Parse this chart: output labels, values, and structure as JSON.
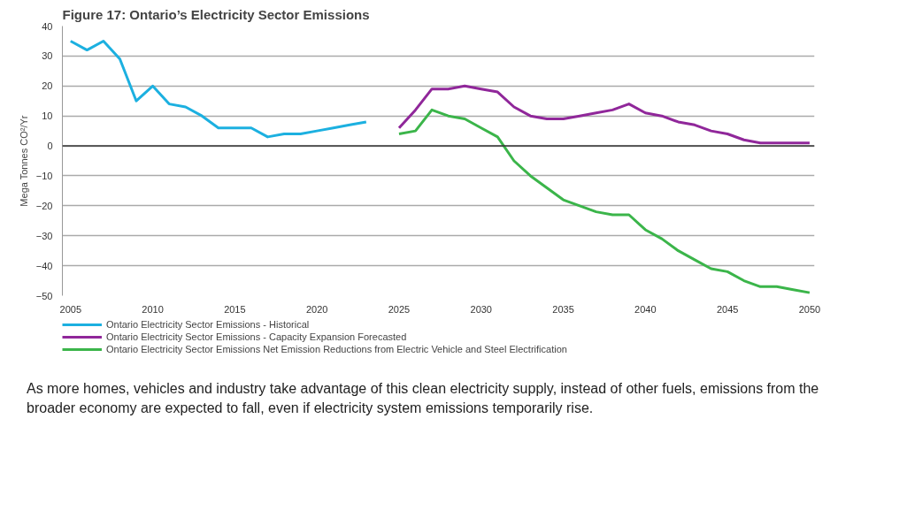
{
  "chart_data": {
    "type": "line",
    "title": "Figure 17: Ontario’s Electricity Sector Emissions",
    "ylabel": "Mega Tonnes CO²/Yr",
    "xlim": [
      2004.5,
      2050.3
    ],
    "xticks": [
      2005,
      2010,
      2015,
      2020,
      2025,
      2030,
      2035,
      2040,
      2045,
      2050
    ],
    "ylim": [
      -50,
      40
    ],
    "yticks": [
      -50,
      -40,
      -30,
      -20,
      -10,
      0,
      10,
      20,
      30,
      40
    ],
    "grid": "y",
    "legend": "bottom",
    "marker": "none",
    "line_style": "solid",
    "ref_lines": [
      {
        "axis": "y",
        "value": 0,
        "color": "#333333"
      }
    ],
    "series": [
      {
        "name": "Ontario Electricity Sector Emissions - Historical",
        "color": "#1cb0e0",
        "x": [
          2005,
          2006,
          2007,
          2008,
          2009,
          2010,
          2011,
          2012,
          2013,
          2014,
          2015,
          2016,
          2017,
          2018,
          2019,
          2020,
          2021,
          2022,
          2023
        ],
        "values": [
          35,
          32,
          35,
          29,
          15,
          20,
          14,
          13,
          10,
          6,
          6,
          6,
          3,
          4,
          4,
          5,
          6,
          7,
          8
        ]
      },
      {
        "name": "Ontario Electricity Sector Emissions - Capacity Expansion Forecasted",
        "color": "#90279a",
        "x": [
          2025,
          2026,
          2027,
          2028,
          2029,
          2030,
          2031,
          2032,
          2033,
          2034,
          2035,
          2036,
          2037,
          2038,
          2039,
          2040,
          2041,
          2042,
          2043,
          2044,
          2045,
          2046,
          2047,
          2048,
          2049,
          2050
        ],
        "values": [
          6,
          12,
          19,
          19,
          20,
          19,
          18,
          13,
          10,
          9,
          9,
          10,
          11,
          12,
          14,
          11,
          10,
          8,
          7,
          5,
          4,
          2,
          1,
          1,
          1,
          1
        ]
      },
      {
        "name": "Ontario Electricity Sector Emissions Net Emission Reductions from Electric Vehicle and Steel Electrification",
        "color": "#3bb54a",
        "x": [
          2025,
          2026,
          2027,
          2028,
          2029,
          2030,
          2031,
          2032,
          2033,
          2034,
          2035,
          2036,
          2037,
          2038,
          2039,
          2040,
          2041,
          2042,
          2043,
          2044,
          2045,
          2046,
          2047,
          2048,
          2049,
          2050
        ],
        "values": [
          4,
          5,
          12,
          10,
          9,
          6,
          3,
          -5,
          -10,
          -14,
          -18,
          -20,
          -22,
          -23,
          -23,
          -28,
          -31,
          -35,
          -38,
          -41,
          -42,
          -45,
          -47,
          -47,
          -48,
          -49
        ]
      }
    ],
    "annotations": [
      "As more homes, vehicles and industry take advantage of this clean electricity supply, instead of other fuels, emissions from the broader economy are expected to fall, even if electricity system emissions temporarily rise."
    ]
  }
}
